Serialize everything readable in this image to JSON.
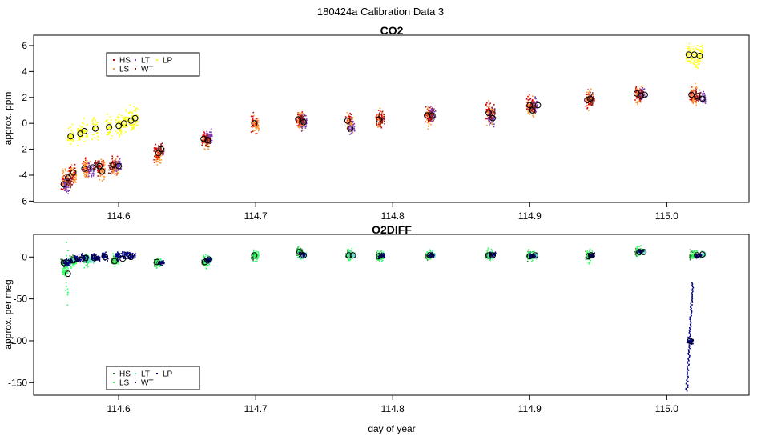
{
  "figure": {
    "suptitle": "180424a   Calibration Data 3"
  },
  "chart_data": [
    {
      "type": "scatter",
      "title": "CO2",
      "xlabel": "",
      "ylabel": "approx. ppm",
      "xlim": [
        114.538,
        115.06
      ],
      "ylim": [
        -6.1,
        6.8
      ],
      "xticks": [
        114.6,
        114.7,
        114.8,
        114.9,
        115.0
      ],
      "xtick_labels": [
        "114.6",
        "114.7",
        "114.8",
        "114.9",
        "115.0"
      ],
      "yticks": [
        -6,
        -4,
        -2,
        0,
        2,
        4,
        6
      ],
      "ytick_labels": [
        "-6",
        "-4",
        "-2",
        "0",
        "2",
        "4",
        "6"
      ],
      "legend": {
        "position": "top-left",
        "entries": [
          {
            "name": "HS",
            "color": "#dd0000"
          },
          {
            "name": "LS",
            "color": "#ff9933"
          },
          {
            "name": "LT",
            "color": "#7a3ab0"
          },
          {
            "name": "WT",
            "color": "#8b1a1a"
          },
          {
            "name": "LP",
            "color": "#ffff00"
          }
        ]
      },
      "series": [
        {
          "name": "HS",
          "color": "#dd0000",
          "spread": 0.7,
          "points": [
            [
              114.56,
              -4.6
            ],
            [
              114.566,
              -3.9
            ],
            [
              114.576,
              -3.4
            ],
            [
              114.587,
              -3.4
            ],
            [
              114.597,
              -3.2
            ],
            [
              114.628,
              -2.3
            ],
            [
              114.663,
              -1.2
            ],
            [
              114.699,
              0.0
            ],
            [
              114.732,
              0.3
            ],
            [
              114.768,
              0.2
            ],
            [
              114.79,
              0.3
            ],
            [
              114.826,
              0.6
            ],
            [
              114.87,
              0.8
            ],
            [
              114.9,
              1.4
            ],
            [
              114.943,
              1.8
            ],
            [
              114.979,
              2.2
            ],
            [
              115.019,
              2.1
            ]
          ]
        },
        {
          "name": "LS",
          "color": "#ff9933",
          "spread": 0.8,
          "points": [
            [
              114.561,
              -4.4
            ],
            [
              114.567,
              -4.0
            ],
            [
              114.577,
              -3.5
            ],
            [
              114.588,
              -3.6
            ],
            [
              114.598,
              -3.3
            ],
            [
              114.629,
              -2.6
            ],
            [
              114.664,
              -1.4
            ],
            [
              114.7,
              -0.1
            ],
            [
              114.733,
              0.2
            ],
            [
              114.769,
              0.0
            ],
            [
              114.791,
              0.4
            ],
            [
              114.827,
              0.5
            ],
            [
              114.871,
              0.7
            ],
            [
              114.901,
              1.1
            ],
            [
              114.944,
              1.9
            ],
            [
              114.98,
              2.3
            ],
            [
              115.02,
              2.2
            ]
          ]
        },
        {
          "name": "LT",
          "color": "#7a3ab0",
          "spread": 0.6,
          "points": [
            [
              114.562,
              -4.8
            ],
            [
              114.58,
              -3.6
            ],
            [
              114.6,
              -3.3
            ],
            [
              114.666,
              -1.1
            ],
            [
              114.735,
              0.1
            ],
            [
              114.77,
              -0.3
            ],
            [
              114.829,
              0.7
            ],
            [
              114.872,
              0.4
            ],
            [
              114.904,
              1.5
            ],
            [
              114.982,
              2.2
            ],
            [
              115.026,
              2.0
            ]
          ]
        },
        {
          "name": "WT",
          "color": "#8b1a1a",
          "spread": 0.5,
          "points": [
            [
              114.564,
              -4.4
            ],
            [
              114.584,
              -3.3
            ],
            [
              114.595,
              -3.4
            ],
            [
              114.631,
              -2.0
            ],
            [
              114.665,
              -1.3
            ],
            [
              114.734,
              0.3
            ],
            [
              114.792,
              0.3
            ],
            [
              114.828,
              0.6
            ],
            [
              114.873,
              0.8
            ],
            [
              114.902,
              1.2
            ],
            [
              114.945,
              1.9
            ],
            [
              114.981,
              2.3
            ],
            [
              115.023,
              2.1
            ]
          ]
        },
        {
          "name": "LP",
          "color": "#ffff00",
          "spread": 0.9,
          "points": [
            [
              114.565,
              -1.0
            ],
            [
              114.572,
              -0.8
            ],
            [
              114.575,
              -0.6
            ],
            [
              114.583,
              -0.4
            ],
            [
              114.593,
              -0.3
            ],
            [
              114.6,
              -0.2
            ],
            [
              114.604,
              0.0
            ],
            [
              114.609,
              0.2
            ],
            [
              114.612,
              0.4
            ],
            [
              115.016,
              5.3
            ],
            [
              115.02,
              5.3
            ],
            [
              115.024,
              5.2
            ]
          ]
        }
      ],
      "means": [
        [
          114.56,
          -4.7
        ],
        [
          114.563,
          -4.2
        ],
        [
          114.567,
          -3.8
        ],
        [
          114.575,
          -3.5
        ],
        [
          114.581,
          -3.4
        ],
        [
          114.586,
          -3.3
        ],
        [
          114.588,
          -3.7
        ],
        [
          114.596,
          -3.2
        ],
        [
          114.6,
          -3.3
        ],
        [
          114.629,
          -2.3
        ],
        [
          114.631,
          -2.0
        ],
        [
          114.662,
          -1.2
        ],
        [
          114.665,
          -1.3
        ],
        [
          114.699,
          0.0
        ],
        [
          114.731,
          0.3
        ],
        [
          114.735,
          0.1
        ],
        [
          114.767,
          0.2
        ],
        [
          114.769,
          -0.4
        ],
        [
          114.79,
          0.3
        ],
        [
          114.825,
          0.6
        ],
        [
          114.829,
          0.6
        ],
        [
          114.87,
          0.8
        ],
        [
          114.873,
          0.4
        ],
        [
          114.9,
          1.4
        ],
        [
          114.902,
          1.0
        ],
        [
          114.906,
          1.4
        ],
        [
          114.942,
          1.8
        ],
        [
          114.944,
          1.9
        ],
        [
          114.978,
          2.3
        ],
        [
          114.981,
          2.1
        ],
        [
          114.984,
          2.2
        ],
        [
          115.018,
          2.2
        ],
        [
          115.022,
          2.1
        ],
        [
          115.026,
          1.9
        ],
        [
          114.565,
          -1.0
        ],
        [
          114.572,
          -0.8
        ],
        [
          114.575,
          -0.6
        ],
        [
          114.583,
          -0.4
        ],
        [
          114.593,
          -0.3
        ],
        [
          114.6,
          -0.2
        ],
        [
          114.604,
          0.0
        ],
        [
          114.609,
          0.2
        ],
        [
          114.612,
          0.4
        ],
        [
          115.016,
          5.3
        ],
        [
          115.02,
          5.3
        ],
        [
          115.024,
          5.2
        ]
      ]
    },
    {
      "type": "scatter",
      "title": "O2DIFF",
      "xlabel": "day of year",
      "ylabel": "approx. per meg",
      "xlim": [
        114.538,
        115.06
      ],
      "ylim": [
        -165,
        27
      ],
      "xticks": [
        114.6,
        114.7,
        114.8,
        114.9,
        115.0
      ],
      "xtick_labels": [
        "114.6",
        "114.7",
        "114.8",
        "114.9",
        "115.0"
      ],
      "yticks": [
        -150,
        -100,
        -50,
        0
      ],
      "ytick_labels": [
        "-150",
        "-100",
        "-50",
        "0"
      ],
      "legend": {
        "position": "bottom-left",
        "entries": [
          {
            "name": "HS",
            "color": "#2e7d32"
          },
          {
            "name": "LS",
            "color": "#33ff66"
          },
          {
            "name": "LT",
            "color": "#66ddcc"
          },
          {
            "name": "WT",
            "color": "#000066"
          },
          {
            "name": "LP",
            "color": "#000080"
          }
        ]
      },
      "series": [
        {
          "name": "HS",
          "color": "#2e7d32",
          "spread": 5,
          "points": [
            [
              114.56,
              -6
            ],
            [
              114.566,
              -3
            ],
            [
              114.576,
              -2
            ],
            [
              114.597,
              -4
            ],
            [
              114.628,
              -7
            ],
            [
              114.663,
              -6
            ],
            [
              114.699,
              1
            ],
            [
              114.732,
              6
            ],
            [
              114.768,
              2
            ],
            [
              114.79,
              1
            ],
            [
              114.826,
              1
            ],
            [
              114.87,
              2
            ],
            [
              114.9,
              1
            ],
            [
              114.943,
              2
            ],
            [
              114.979,
              6
            ],
            [
              115.019,
              2
            ]
          ]
        },
        {
          "name": "LS",
          "color": "#33ff66",
          "spread": 8,
          "points": [
            [
              114.561,
              -15
            ],
            [
              114.567,
              -6
            ],
            [
              114.577,
              -4
            ],
            [
              114.598,
              -5
            ],
            [
              114.629,
              -8
            ],
            [
              114.664,
              -5
            ],
            [
              114.7,
              2
            ],
            [
              114.733,
              4
            ],
            [
              114.769,
              3
            ],
            [
              114.791,
              1
            ],
            [
              114.827,
              2
            ],
            [
              114.871,
              3
            ],
            [
              114.901,
              2
            ],
            [
              114.944,
              1
            ],
            [
              114.98,
              7
            ],
            [
              115.02,
              3
            ]
          ]
        },
        {
          "name": "LT",
          "color": "#66ddcc",
          "spread": 4,
          "points": [
            [
              114.565,
              -5
            ],
            [
              114.58,
              -3
            ],
            [
              114.666,
              -3
            ],
            [
              114.735,
              2
            ],
            [
              114.77,
              2
            ],
            [
              114.829,
              2
            ],
            [
              114.872,
              2
            ],
            [
              114.904,
              2
            ],
            [
              114.982,
              6
            ],
            [
              115.026,
              3
            ]
          ]
        },
        {
          "name": "WT",
          "color": "#000066",
          "spread": 3,
          "points": [
            [
              114.564,
              -5
            ],
            [
              114.584,
              -2
            ],
            [
              114.631,
              -7
            ],
            [
              114.665,
              -4
            ],
            [
              114.734,
              3
            ],
            [
              114.792,
              1
            ],
            [
              114.828,
              2
            ],
            [
              114.873,
              3
            ],
            [
              114.902,
              1
            ],
            [
              114.945,
              2
            ],
            [
              114.981,
              6
            ],
            [
              115.023,
              2
            ]
          ]
        },
        {
          "name": "LP",
          "color": "#000080",
          "spread": 5,
          "points": [
            [
              114.562,
              -8
            ],
            [
              114.57,
              -2
            ],
            [
              114.575,
              -1
            ],
            [
              114.582,
              0
            ],
            [
              114.59,
              1
            ],
            [
              114.6,
              1
            ],
            [
              114.605,
              2
            ],
            [
              114.61,
              1
            ],
            [
              115.017,
              -100
            ]
          ]
        }
      ],
      "means": [
        [
          114.56,
          -7
        ],
        [
          114.563,
          -20
        ],
        [
          114.567,
          -4
        ],
        [
          114.572,
          -3
        ],
        [
          114.576,
          -1
        ],
        [
          114.582,
          -1
        ],
        [
          114.59,
          0
        ],
        [
          114.597,
          -5
        ],
        [
          114.603,
          -2
        ],
        [
          114.609,
          0
        ],
        [
          114.628,
          -6
        ],
        [
          114.663,
          -6
        ],
        [
          114.666,
          -3
        ],
        [
          114.699,
          2
        ],
        [
          114.732,
          6
        ],
        [
          114.735,
          2
        ],
        [
          114.768,
          2
        ],
        [
          114.771,
          2
        ],
        [
          114.79,
          1
        ],
        [
          114.827,
          2
        ],
        [
          114.87,
          2
        ],
        [
          114.873,
          2
        ],
        [
          114.9,
          1
        ],
        [
          114.904,
          2
        ],
        [
          114.943,
          1
        ],
        [
          114.945,
          2
        ],
        [
          114.98,
          6
        ],
        [
          114.983,
          6
        ],
        [
          115.017,
          -100
        ],
        [
          115.022,
          2
        ],
        [
          115.026,
          3
        ]
      ]
    }
  ]
}
